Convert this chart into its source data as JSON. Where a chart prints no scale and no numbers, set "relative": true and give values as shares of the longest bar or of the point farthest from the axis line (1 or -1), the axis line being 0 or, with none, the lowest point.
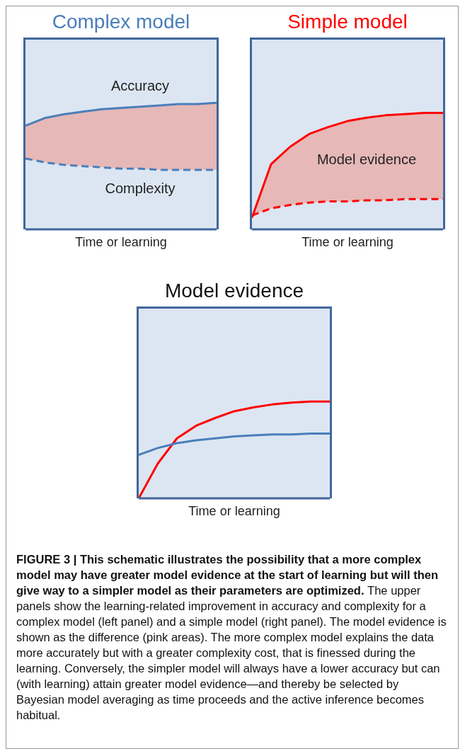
{
  "chart_data": [
    {
      "type": "line",
      "title": "Complex model",
      "xlabel": "Time or learning",
      "relative": true,
      "legend": false,
      "grid": false,
      "marker": "none",
      "categories": [
        null,
        null,
        null,
        null,
        null,
        null,
        null,
        null,
        null,
        null,
        null
      ],
      "series": [
        {
          "name": "Accuracy",
          "color": "#4a7ebb",
          "line_style": "solid",
          "values": [
            0.82,
            0.88,
            0.91,
            0.93,
            0.95,
            0.96,
            0.97,
            0.98,
            0.99,
            0.99,
            1.0
          ],
          "lower": [
            0.56,
            0.53,
            0.51,
            0.5,
            0.49,
            0.48,
            0.48,
            0.47,
            0.47,
            0.47,
            0.47
          ],
          "upper": [
            0.82,
            0.88,
            0.91,
            0.93,
            0.95,
            0.96,
            0.97,
            0.98,
            0.99,
            0.99,
            1.0
          ]
        },
        {
          "name": "Complexity",
          "color": "#4a7ebb",
          "line_style": "dashed",
          "values": [
            0.56,
            0.53,
            0.51,
            0.5,
            0.49,
            0.48,
            0.48,
            0.47,
            0.47,
            0.47,
            0.47
          ]
        }
      ]
    },
    {
      "type": "line",
      "title": "Simple model",
      "xlabel": "Time or learning",
      "relative": true,
      "legend": false,
      "grid": false,
      "marker": "none",
      "categories": [
        null,
        null,
        null,
        null,
        null,
        null,
        null,
        null,
        null,
        null,
        null
      ],
      "annotations": [
        "Model evidence"
      ],
      "series": [
        {
          "color": "#ff0000",
          "line_style": "solid",
          "values": [
            0.1,
            0.56,
            0.71,
            0.82,
            0.88,
            0.93,
            0.96,
            0.98,
            0.99,
            1.0,
            1.0
          ],
          "lower": [
            0.12,
            0.18,
            0.21,
            0.23,
            0.24,
            0.24,
            0.25,
            0.25,
            0.26,
            0.26,
            0.26
          ],
          "upper": [
            0.1,
            0.56,
            0.71,
            0.82,
            0.88,
            0.93,
            0.96,
            0.98,
            0.99,
            1.0,
            1.0
          ]
        },
        {
          "color": "#ff0000",
          "line_style": "dashed",
          "values": [
            0.12,
            0.18,
            0.21,
            0.23,
            0.24,
            0.24,
            0.25,
            0.25,
            0.26,
            0.26,
            0.26
          ]
        }
      ]
    },
    {
      "type": "line",
      "title": "Model evidence",
      "xlabel": "Time or learning",
      "relative": true,
      "legend": false,
      "grid": false,
      "marker": "none",
      "categories": [
        null,
        null,
        null,
        null,
        null,
        null,
        null,
        null,
        null,
        null,
        null
      ],
      "series": [
        {
          "color": "#ff0000",
          "line_style": "solid",
          "values": [
            0,
            0.36,
            0.62,
            0.75,
            0.83,
            0.9,
            0.94,
            0.97,
            0.99,
            1.0,
            1.0
          ]
        },
        {
          "color": "#4a7ebb",
          "line_style": "solid",
          "values": [
            0.45,
            0.52,
            0.57,
            0.6,
            0.62,
            0.64,
            0.65,
            0.66,
            0.66,
            0.67,
            0.67
          ]
        }
      ],
      "annotations": [
        "FIGURE 3 | This schematic illustrates the possibility that a more complex model may have greater model evidence at the start of learning but will then give way to a simpler model as their parameters are optimized.",
        "The upper panels show the learning-related improvement in accuracy and complexity for a complex model (left panel) and a simple model (right panel). The model evidence is shown as the difference (pink areas). The more complex model explains the data more accurately but with a greater complexity cost, that is finessed during the learning. Conversely, the simpler model will always have a lower accuracy but can (with learning) attain greater model evidence—and thereby be selected by Bayesian model averaging as time proceeds and the active inference becomes habitual."
      ]
    }
  ]
}
